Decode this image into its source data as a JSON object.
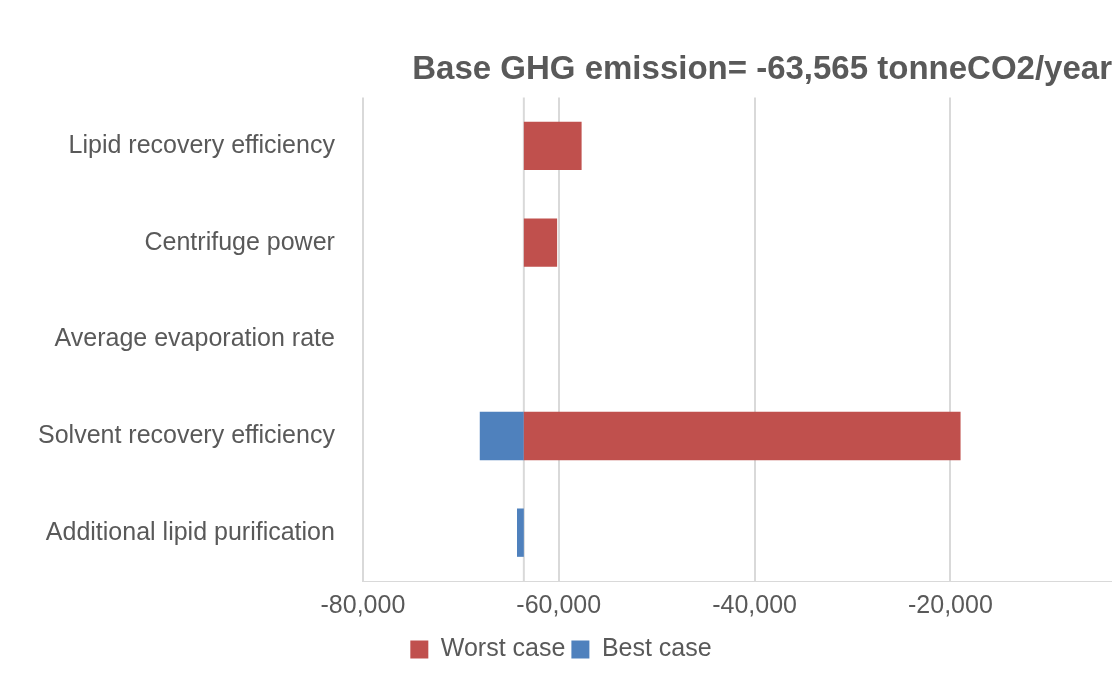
{
  "chart_data": {
    "type": "bar",
    "orientation": "horizontal",
    "title": "Base GHG emission= -63,565 tonneCO2/year",
    "categories": [
      "Lipid recovery efficiency",
      "Centrifuge power",
      "Average evaporation rate",
      "Solvent recovery efficiency",
      "Additional lipid purification"
    ],
    "series": [
      {
        "name": "Worst case",
        "color": "#c0504d",
        "base": [
          -63565,
          -63565,
          null,
          -63565,
          null
        ],
        "values": [
          5900,
          3400,
          null,
          44600,
          null
        ]
      },
      {
        "name": "Best case",
        "color": "#4f81bd",
        "base": [
          null,
          null,
          null,
          -63565,
          -63565
        ],
        "values": [
          null,
          null,
          null,
          -4500,
          -700
        ]
      }
    ],
    "xlim": [
      -80000,
      -3500
    ],
    "xticks": [
      {
        "value": -80000,
        "label": "-80,000"
      },
      {
        "value": -60000,
        "label": "-60,000"
      },
      {
        "value": -40000,
        "label": "-40,000"
      },
      {
        "value": -20000,
        "label": "-20,000"
      }
    ],
    "ref_lines": [
      {
        "axis": "x",
        "value": -63565,
        "color": "#d9d9d9"
      }
    ],
    "grid": "x",
    "legend": "bottom"
  }
}
